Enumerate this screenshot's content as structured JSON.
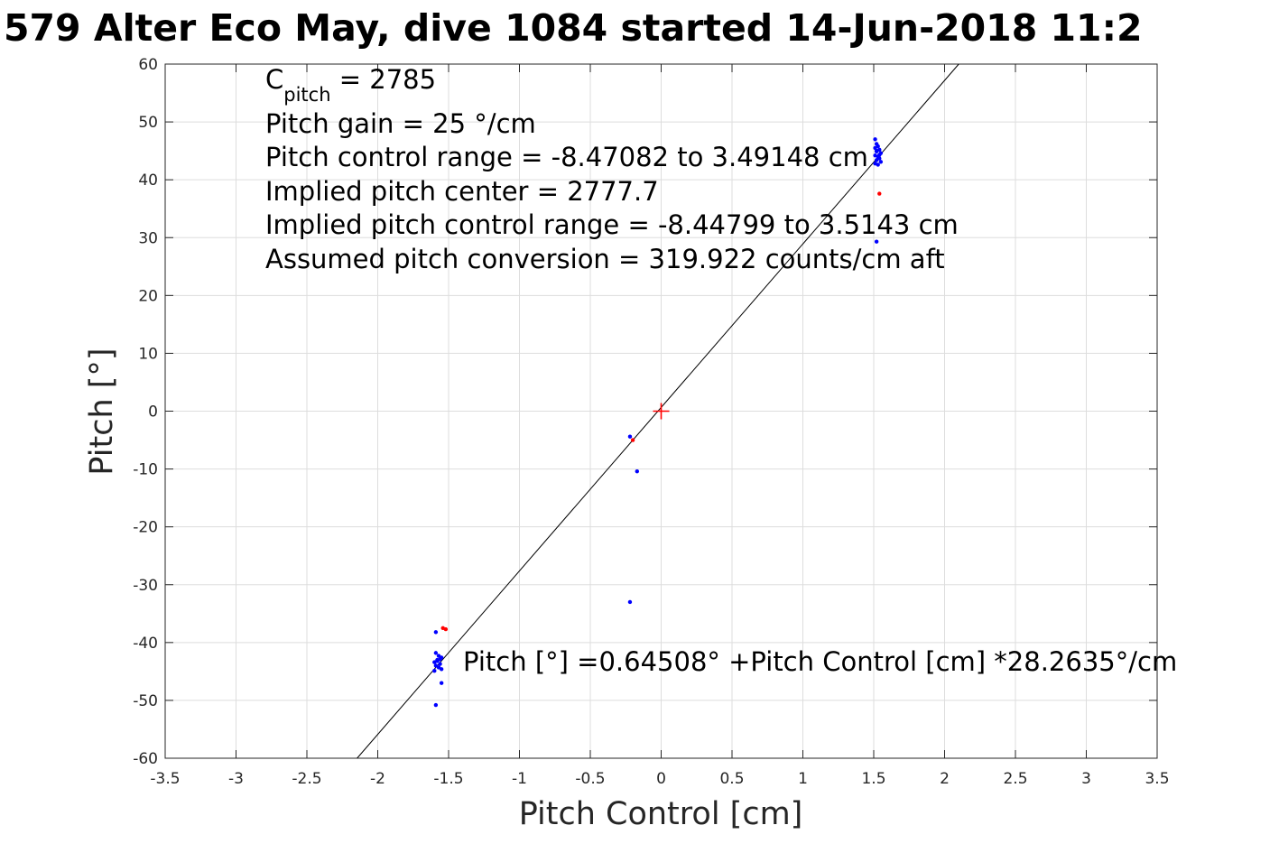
{
  "title": "579 Alter Eco May, dive 1084 started 14-Jun-2018 11:2",
  "annotations": {
    "c_pitch_base": "C",
    "c_pitch_sub": "pitch",
    "c_pitch_value": " = 2785",
    "pitch_gain": "Pitch gain = 25 °/cm",
    "pitch_control_range": "Pitch control range = -8.47082 to 3.49148 cm",
    "implied_center": "Implied pitch center = 2777.7",
    "implied_range": "Implied pitch control range = -8.44799 to 3.5143 cm",
    "assumed_conversion": "Assumed pitch conversion = 319.922 counts/cm aft",
    "fit_equation": "Pitch [°] =0.64508° +Pitch Control [cm] *28.2635°/cm"
  },
  "chart_data": {
    "type": "scatter",
    "title": "579 Alter Eco May, dive 1084 started 14-Jun-2018 11:2",
    "xlabel": "Pitch Control [cm]",
    "ylabel": "Pitch [°]",
    "xlim": [
      -3.5,
      3.5
    ],
    "ylim": [
      -60,
      60
    ],
    "xticks": [
      -3.5,
      -3,
      -2.5,
      -2,
      -1.5,
      -1,
      -0.5,
      0,
      0.5,
      1,
      1.5,
      2,
      2.5,
      3,
      3.5
    ],
    "xtick_labels": [
      "-3.5",
      "-3",
      "-2.5",
      "-2",
      "-1.5",
      "-1",
      "-0.5",
      "0",
      "0.5",
      "1",
      "1.5",
      "2",
      "2.5",
      "3",
      "3.5"
    ],
    "yticks": [
      -60,
      -50,
      -40,
      -30,
      -20,
      -10,
      0,
      10,
      20,
      30,
      40,
      50,
      60
    ],
    "ytick_labels": [
      "-60",
      "-50",
      "-40",
      "-30",
      "-20",
      "-10",
      "0",
      "10",
      "20",
      "30",
      "40",
      "50",
      "60"
    ],
    "grid": true,
    "colors": {
      "blue": "#0000ff",
      "red": "#ff0000",
      "fit": "#000000",
      "grid": "#dddddd"
    },
    "fit_line": {
      "intercept": 0.64508,
      "slope": 28.2635
    },
    "center_marker": {
      "x": 0,
      "y": 0,
      "shape": "plus",
      "color": "#ff0000"
    },
    "series": [
      {
        "color": "#0000ff",
        "points": [
          [
            1.51,
            47.0
          ],
          [
            1.52,
            46.2
          ],
          [
            1.53,
            45.8
          ],
          [
            1.51,
            45.5
          ],
          [
            1.54,
            45.2
          ],
          [
            1.52,
            44.9
          ],
          [
            1.55,
            44.6
          ],
          [
            1.51,
            44.2
          ],
          [
            1.53,
            44.0
          ],
          [
            1.54,
            43.7
          ],
          [
            1.52,
            43.4
          ],
          [
            1.55,
            43.1
          ],
          [
            1.51,
            42.8
          ],
          [
            1.53,
            42.6
          ],
          [
            1.52,
            45.0
          ],
          [
            1.54,
            44.3
          ],
          [
            1.52,
            29.3
          ],
          [
            -1.59,
            -38.2
          ],
          [
            -1.59,
            -41.8
          ],
          [
            -1.57,
            -42.3
          ],
          [
            -1.55,
            -42.6
          ],
          [
            -1.58,
            -43.0
          ],
          [
            -1.6,
            -43.4
          ],
          [
            -1.56,
            -43.7
          ],
          [
            -1.59,
            -44.0
          ],
          [
            -1.57,
            -44.3
          ],
          [
            -1.55,
            -44.6
          ],
          [
            -1.6,
            -44.9
          ],
          [
            -1.58,
            -43.2
          ],
          [
            -1.56,
            -42.9
          ],
          [
            -1.55,
            -47.0
          ],
          [
            -1.59,
            -50.8
          ],
          [
            -0.22,
            -4.4
          ],
          [
            -0.17,
            -10.4
          ],
          [
            -0.22,
            -33.0
          ]
        ]
      },
      {
        "color": "#ff0000",
        "points": [
          [
            1.54,
            37.6
          ],
          [
            -1.52,
            -37.7
          ],
          [
            -1.54,
            -37.5
          ],
          [
            -0.2,
            -5.0
          ]
        ]
      }
    ]
  }
}
